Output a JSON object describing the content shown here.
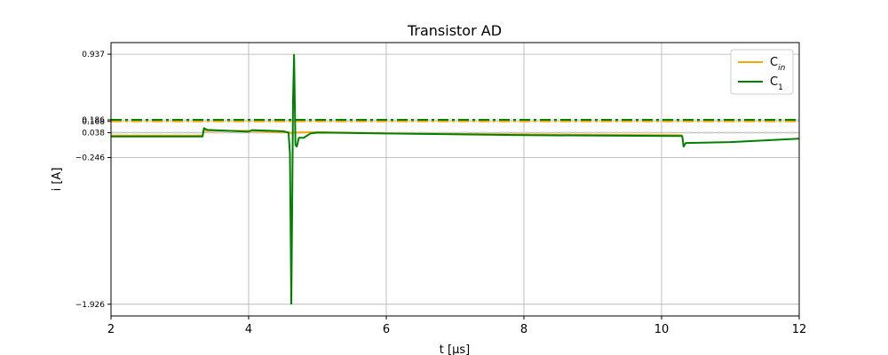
{
  "chart_data": {
    "type": "line",
    "title": "Transistor AD",
    "xlabel": "t [μs]",
    "ylabel": "i [A]",
    "xlim": [
      2,
      12
    ],
    "ylim": [
      -2.06,
      1.07
    ],
    "x_ticks": [
      2,
      4,
      6,
      8,
      10,
      12
    ],
    "y_ticks": [
      -1.926,
      -0.246,
      0.038,
      0.168,
      0.186,
      0.937
    ],
    "y_tick_labels": [
      "−1.926",
      "−0.246",
      "0.038",
      "0.168",
      "0.186",
      "0.937"
    ],
    "grid": true,
    "legend_position": "top-right",
    "series": [
      {
        "name": "C_in",
        "color": "#ffa500",
        "points": [
          [
            2,
            0.005
          ],
          [
            3.33,
            0.005
          ],
          [
            3.35,
            0.06
          ],
          [
            4.0,
            0.06
          ],
          [
            4.6,
            0.04
          ],
          [
            4.62,
            0.03
          ],
          [
            4.65,
            0.04
          ],
          [
            5.0,
            0.045
          ],
          [
            6.0,
            0.03
          ],
          [
            8.0,
            0.018
          ],
          [
            10.3,
            0.01
          ]
        ]
      },
      {
        "name": "C_1",
        "color": "#008000",
        "points": [
          [
            2,
            -0.005
          ],
          [
            3.33,
            -0.005
          ],
          [
            3.35,
            0.09
          ],
          [
            3.4,
            0.07
          ],
          [
            4.0,
            0.05
          ],
          [
            4.05,
            0.068
          ],
          [
            4.5,
            0.055
          ],
          [
            4.58,
            0.04
          ],
          [
            4.6,
            -0.2
          ],
          [
            4.62,
            -1.92
          ],
          [
            4.635,
            -0.6
          ],
          [
            4.645,
            0.4
          ],
          [
            4.66,
            0.93
          ],
          [
            4.68,
            -0.1
          ],
          [
            4.7,
            -0.12
          ],
          [
            4.73,
            -0.02
          ],
          [
            4.8,
            -0.02
          ],
          [
            4.9,
            0.03
          ],
          [
            5.0,
            0.04
          ],
          [
            6.0,
            0.03
          ],
          [
            8.0,
            0.01
          ],
          [
            10.3,
            0.0
          ],
          [
            10.32,
            -0.12
          ],
          [
            10.35,
            -0.08
          ],
          [
            11.0,
            -0.07
          ],
          [
            12,
            -0.03
          ]
        ]
      }
    ],
    "reference_lines": [
      {
        "y": 0.168,
        "color": "#ffa500",
        "style": "dash-dot"
      },
      {
        "y": 0.186,
        "color": "#008000",
        "style": "dash-dot"
      },
      {
        "y": 0.038,
        "color": "#ffa500",
        "style": "dash-dot"
      },
      {
        "y": 0.038,
        "color": "#d0d0d0",
        "style": "dash-dot"
      }
    ]
  }
}
